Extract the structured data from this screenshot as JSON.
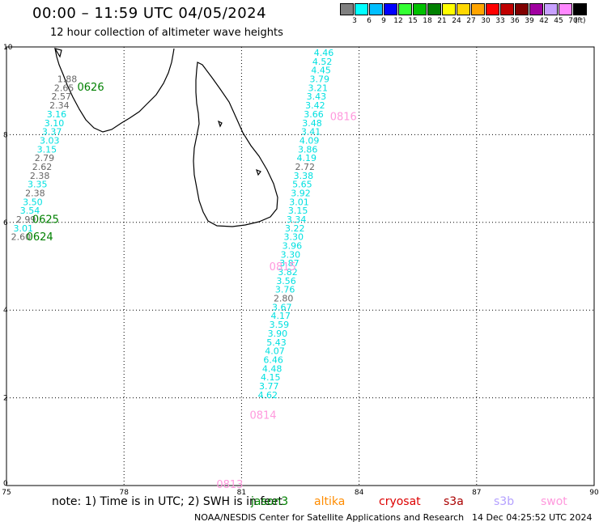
{
  "header": {
    "title": "00:00 – 11:59 UTC 04/05/2024",
    "subtitle": "12 hour collection of altimeter wave heights"
  },
  "colorbar": {
    "labels": [
      "3",
      "6",
      "9",
      "12",
      "15",
      "18",
      "21",
      "24",
      "27",
      "30",
      "33",
      "36",
      "39",
      "42",
      "45",
      "70"
    ],
    "unit": "(ft)",
    "colors": [
      "#808080",
      "#00ffff",
      "#00bfff",
      "#0000ff",
      "#33ff33",
      "#00c000",
      "#008000",
      "#ffff00",
      "#ffd700",
      "#ffa500",
      "#ff0000",
      "#c00000",
      "#800000",
      "#a000a0",
      "#c8a0ff",
      "#ff88ff",
      "#000000"
    ]
  },
  "axes": {
    "x_ticks": [
      "75",
      "78",
      "81",
      "84",
      "87",
      "90"
    ],
    "y_ticks": [
      "0",
      "2",
      "4",
      "6",
      "8",
      "10"
    ],
    "lon_range": [
      75,
      90
    ],
    "lat_range": [
      0,
      10
    ]
  },
  "colors": {
    "cyan": "#00e0e0",
    "gray": "#666666",
    "jason3": "#008000",
    "altika": "#ff8c00",
    "cryosat": "#dd0000",
    "s3a": "#aa0000",
    "s3b": "#b4a0ff",
    "swot": "#ff99dd"
  },
  "chart_data": {
    "type": "scatter",
    "tracks": [
      {
        "satellite": "jason3",
        "pass_labels": [
          {
            "text": "0626",
            "lon": 77.15,
            "lat": 9.1
          },
          {
            "text": "0625",
            "lon": 76.0,
            "lat": 6.08
          },
          {
            "text": "0624",
            "lon": 75.85,
            "lat": 5.68
          }
        ],
        "points": [
          {
            "v": "1.88",
            "lon": 76.55,
            "lat": 9.27,
            "c": "gray"
          },
          {
            "v": "2.65",
            "lon": 76.47,
            "lat": 9.07,
            "c": "gray"
          },
          {
            "v": "2.57",
            "lon": 76.4,
            "lat": 8.87,
            "c": "gray"
          },
          {
            "v": "2.34",
            "lon": 76.35,
            "lat": 8.67,
            "c": "gray"
          },
          {
            "v": "3.16",
            "lon": 76.28,
            "lat": 8.47,
            "c": "cyan"
          },
          {
            "v": "3.10",
            "lon": 76.22,
            "lat": 8.27,
            "c": "cyan"
          },
          {
            "v": "3.37",
            "lon": 76.16,
            "lat": 8.07,
            "c": "cyan"
          },
          {
            "v": "3.03",
            "lon": 76.1,
            "lat": 7.87,
            "c": "cyan"
          },
          {
            "v": "3.15",
            "lon": 76.03,
            "lat": 7.67,
            "c": "cyan"
          },
          {
            "v": "2.79",
            "lon": 75.97,
            "lat": 7.47,
            "c": "gray"
          },
          {
            "v": "2.62",
            "lon": 75.91,
            "lat": 7.27,
            "c": "gray"
          },
          {
            "v": "2.38",
            "lon": 75.85,
            "lat": 7.07,
            "c": "gray"
          },
          {
            "v": "3.35",
            "lon": 75.79,
            "lat": 6.87,
            "c": "cyan"
          },
          {
            "v": "2.38",
            "lon": 75.73,
            "lat": 6.67,
            "c": "gray"
          },
          {
            "v": "3.50",
            "lon": 75.67,
            "lat": 6.47,
            "c": "cyan"
          },
          {
            "v": "3.54",
            "lon": 75.6,
            "lat": 6.27,
            "c": "cyan"
          },
          {
            "v": "2.99",
            "lon": 75.5,
            "lat": 6.07,
            "c": "gray"
          },
          {
            "v": "3.01",
            "lon": 75.43,
            "lat": 5.87,
            "c": "cyan"
          },
          {
            "v": "2.60",
            "lon": 75.37,
            "lat": 5.67,
            "c": "gray"
          }
        ]
      },
      {
        "satellite": "swot",
        "pass_labels": [
          {
            "text": "0816",
            "lon": 83.6,
            "lat": 8.42
          },
          {
            "text": "0815",
            "lon": 82.05,
            "lat": 5.0
          },
          {
            "text": "0814",
            "lon": 81.55,
            "lat": 1.61
          },
          {
            "text": "0813",
            "lon": 80.7,
            "lat": 0.04
          }
        ],
        "points": [
          {
            "v": "4.46",
            "lon": 83.1,
            "lat": 9.87,
            "c": "cyan"
          },
          {
            "v": "4.52",
            "lon": 83.06,
            "lat": 9.67,
            "c": "cyan"
          },
          {
            "v": "4.45",
            "lon": 83.03,
            "lat": 9.47,
            "c": "cyan"
          },
          {
            "v": "3.79",
            "lon": 82.99,
            "lat": 9.27,
            "c": "cyan"
          },
          {
            "v": "3.21",
            "lon": 82.95,
            "lat": 9.07,
            "c": "cyan"
          },
          {
            "v": "3.43",
            "lon": 82.91,
            "lat": 8.87,
            "c": "cyan"
          },
          {
            "v": "3.42",
            "lon": 82.88,
            "lat": 8.67,
            "c": "cyan"
          },
          {
            "v": "3.66",
            "lon": 82.84,
            "lat": 8.47,
            "c": "cyan"
          },
          {
            "v": "3.48",
            "lon": 82.8,
            "lat": 8.27,
            "c": "cyan"
          },
          {
            "v": "3.41",
            "lon": 82.77,
            "lat": 8.07,
            "c": "cyan"
          },
          {
            "v": "4.09",
            "lon": 82.73,
            "lat": 7.87,
            "c": "cyan"
          },
          {
            "v": "3.86",
            "lon": 82.69,
            "lat": 7.67,
            "c": "cyan"
          },
          {
            "v": "4.19",
            "lon": 82.66,
            "lat": 7.47,
            "c": "cyan"
          },
          {
            "v": "2.72",
            "lon": 82.62,
            "lat": 7.27,
            "c": "gray"
          },
          {
            "v": "3.38",
            "lon": 82.58,
            "lat": 7.07,
            "c": "cyan"
          },
          {
            "v": "5.65",
            "lon": 82.55,
            "lat": 6.87,
            "c": "cyan"
          },
          {
            "v": "3.92",
            "lon": 82.51,
            "lat": 6.67,
            "c": "cyan"
          },
          {
            "v": "3.01",
            "lon": 82.47,
            "lat": 6.47,
            "c": "cyan"
          },
          {
            "v": "3.15",
            "lon": 82.44,
            "lat": 6.27,
            "c": "cyan"
          },
          {
            "v": "3.34",
            "lon": 82.4,
            "lat": 6.07,
            "c": "cyan"
          },
          {
            "v": "3.22",
            "lon": 82.36,
            "lat": 5.87,
            "c": "cyan"
          },
          {
            "v": "3.30",
            "lon": 82.33,
            "lat": 5.67,
            "c": "cyan"
          },
          {
            "v": "3.96",
            "lon": 82.29,
            "lat": 5.47,
            "c": "cyan"
          },
          {
            "v": "3.30",
            "lon": 82.25,
            "lat": 5.27,
            "c": "cyan"
          },
          {
            "v": "3.87",
            "lon": 82.22,
            "lat": 5.07,
            "c": "cyan"
          },
          {
            "v": "3.82",
            "lon": 82.18,
            "lat": 4.87,
            "c": "cyan"
          },
          {
            "v": "3.56",
            "lon": 82.14,
            "lat": 4.67,
            "c": "cyan"
          },
          {
            "v": "3.76",
            "lon": 82.11,
            "lat": 4.47,
            "c": "cyan"
          },
          {
            "v": "2.80",
            "lon": 82.07,
            "lat": 4.27,
            "c": "gray"
          },
          {
            "v": "3.67",
            "lon": 82.03,
            "lat": 4.07,
            "c": "cyan"
          },
          {
            "v": "4.17",
            "lon": 82.0,
            "lat": 3.87,
            "c": "cyan"
          },
          {
            "v": "3.59",
            "lon": 81.96,
            "lat": 3.67,
            "c": "cyan"
          },
          {
            "v": "3.90",
            "lon": 81.92,
            "lat": 3.47,
            "c": "cyan"
          },
          {
            "v": "5.43",
            "lon": 81.89,
            "lat": 3.27,
            "c": "cyan"
          },
          {
            "v": "4.07",
            "lon": 81.85,
            "lat": 3.07,
            "c": "cyan"
          },
          {
            "v": "6.46",
            "lon": 81.81,
            "lat": 2.87,
            "c": "cyan"
          },
          {
            "v": "4.48",
            "lon": 81.78,
            "lat": 2.67,
            "c": "cyan"
          },
          {
            "v": "4.15",
            "lon": 81.74,
            "lat": 2.47,
            "c": "cyan"
          },
          {
            "v": "3.77",
            "lon": 81.7,
            "lat": 2.27,
            "c": "cyan"
          },
          {
            "v": "4.62",
            "lon": 81.67,
            "lat": 2.07,
            "c": "cyan"
          }
        ]
      }
    ]
  },
  "footer": {
    "note": "note: 1) Time is in UTC; 2) SWH is in feet",
    "legend": [
      {
        "label": "jason3",
        "color": "#008000"
      },
      {
        "label": "altika",
        "color": "#ff8c00"
      },
      {
        "label": "cryosat",
        "color": "#dd0000"
      },
      {
        "label": "s3a",
        "color": "#aa0000"
      },
      {
        "label": "s3b",
        "color": "#b4a0ff"
      },
      {
        "label": "swot",
        "color": "#ff99dd"
      }
    ],
    "credit": "NOAA/NESDIS Center for Satellite Applications and Research",
    "timestamp": "14 Dec 04:25:52 UTC 2024"
  }
}
